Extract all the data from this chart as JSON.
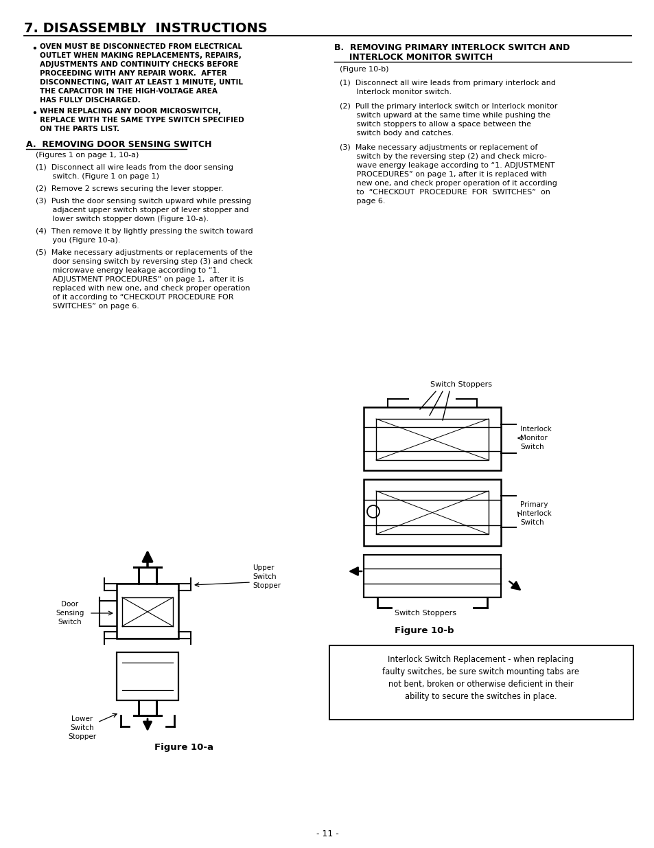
{
  "title": "7. DISASSEMBLY  INSTRUCTIONS",
  "background": "#ffffff",
  "page_number": "- 11 -",
  "bullet1_lines": [
    "OVEN MUST BE DISCONNECTED FROM ELECTRICAL",
    "OUTLET WHEN MAKING REPLACEMENTS, REPAIRS,",
    "ADJUSTMENTS AND CONTINUITY CHECKS BEFORE",
    "PROCEEDING WITH ANY REPAIR WORK.  AFTER",
    "DISCONNECTING, WAIT AT LEAST 1 MINUTE, UNTIL",
    "THE CAPACITOR IN THE HIGH-VOLTAGE AREA",
    "HAS FULLY DISCHARGED."
  ],
  "bullet2_lines": [
    "WHEN REPLACING ANY DOOR MICROSWITCH,",
    "REPLACE WITH THE SAME TYPE SWITCH SPECIFIED",
    "ON THE PARTS LIST."
  ],
  "sec_a_title": "A.  REMOVING DOOR SENSING SWITCH",
  "sec_a_sub": "(Figures 1 on page 1, 10-a)",
  "steps_a": [
    [
      "(1)  Disconnect all wire leads from the door sensing",
      "       switch. (Figure 1 on page 1)"
    ],
    [
      "(2)  Remove 2 screws securing the lever stopper."
    ],
    [
      "(3)  Push the door sensing switch upward while pressing",
      "       adjacent upper switch stopper of lever stopper and",
      "       lower switch stopper down (Figure 10-a)."
    ],
    [
      "(4)  Then remove it by lightly pressing the switch toward",
      "       you (Figure 10-a)."
    ],
    [
      "(5)  Make necessary adjustments or replacements of the",
      "       door sensing switch by reversing step (3) and check",
      "       microwave energy leakage according to “1.",
      "       ADJUSTMENT PROCEDURES” on page 1,  after it is",
      "       replaced with new one, and check proper operation",
      "       of it according to “CHECKOUT PROCEDURE FOR",
      "       SWITCHES” on page 6."
    ]
  ],
  "sec_b_title1": "B.  REMOVING PRIMARY INTERLOCK SWITCH AND",
  "sec_b_title2": "     INTERLOCK MONITOR SWITCH",
  "sec_b_sub": "(Figure 10-b)",
  "steps_b": [
    [
      "(1)  Disconnect all wire leads from primary interlock and",
      "       Interlock monitor switch."
    ],
    [
      "(2)  Pull the primary interlock switch or Interlock monitor",
      "       switch upward at the same time while pushing the",
      "       switch stoppers to allow a space between the",
      "       switch body and catches."
    ],
    [
      "(3)  Make necessary adjustments or replacement of",
      "       switch by the reversing step (2) and check micro-",
      "       wave energy leakage according to “1. ADJUSTMENT",
      "       PROCEDURES” on page 1, after it is replaced with",
      "       new one, and check proper operation of it according",
      "       to  “CHECKOUT  PROCEDURE  FOR  SWITCHES”  on",
      "       page 6."
    ]
  ],
  "fig_a_label": "Figure 10-a",
  "fig_b_label": "Figure 10-b",
  "label_door": "Door\nSensing\nSwitch",
  "label_upper": "Upper\nSwitch\nStopper",
  "label_lower": "Lower\nSwitch\nStopper",
  "label_sw_stop_top": "Switch Stoppers",
  "label_interlock_mon": "Interlock\nMonitor\nSwitch",
  "label_primary": "Primary\nInterlock\nSwitch",
  "label_sw_stop_bot": "Switch Stoppers",
  "box_text": "Interlock Switch Replacement - when replacing\nfaulty switches, be sure switch mounting tabs are\nnot bent, broken or otherwise deficient in their\nability to secure the switches in place."
}
